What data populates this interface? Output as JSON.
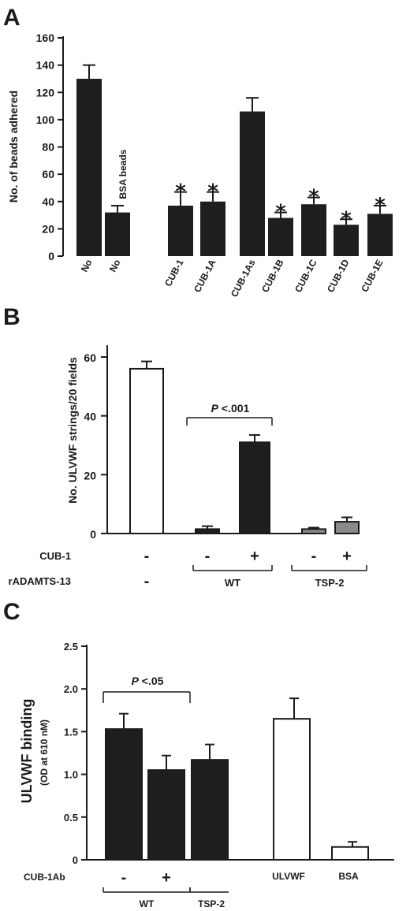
{
  "panels": {
    "a": {
      "label": "A"
    },
    "b": {
      "label": "B"
    },
    "c": {
      "label": "C"
    }
  },
  "chart_data": [
    {
      "type": "bar",
      "panel": "A",
      "ylabel": "No. of beads adhered",
      "ylim": [
        0,
        160
      ],
      "yticks": [
        "0",
        "20",
        "40",
        "60",
        "80",
        "100",
        "120",
        "140",
        "160"
      ],
      "categories": [
        "No",
        "No",
        "CUB-1",
        "CUB-1A",
        "CUB-1As",
        "CUB-1B",
        "CUB-1C",
        "CUB-1D",
        "CUB-1E"
      ],
      "values": [
        130,
        32,
        37,
        40,
        106,
        28,
        38,
        23,
        31
      ],
      "errors": [
        10,
        5,
        10,
        7,
        10,
        4,
        5,
        4,
        6
      ],
      "significance": [
        "",
        "",
        "*",
        "*",
        "",
        "*",
        "*",
        "*",
        "*"
      ],
      "annotation": "BSA  beads",
      "bar_color": "#1e1e1e"
    },
    {
      "type": "bar",
      "panel": "B",
      "ylabel": "No. ULVWF strings/20 fields",
      "ylim": [
        0,
        60
      ],
      "yticks": [
        "0",
        "20",
        "40",
        "60"
      ],
      "values": [
        56,
        1.5,
        31,
        1.5,
        4
      ],
      "errors": [
        2.5,
        1,
        2.5,
        0.5,
        1.5
      ],
      "fills": [
        "#ffffff",
        "#1e1e1e",
        "#1e1e1e",
        "#8a8a8a",
        "#8a8a8a"
      ],
      "row_labels": [
        "CUB-1",
        "rADAMTS-13"
      ],
      "cub1": [
        "-",
        "-",
        "+",
        "-",
        "+"
      ],
      "groups": [
        {
          "name": "-"
        },
        {
          "name": "WT"
        },
        {
          "name": "TSP-2"
        }
      ],
      "pvalue": {
        "italic": "P",
        "text": " <.001"
      }
    },
    {
      "type": "bar",
      "panel": "C",
      "ylabel": "ULVWF  binding",
      "ylabel_sub": "(OD at 610 nM)",
      "ylim": [
        0,
        2.5
      ],
      "yticks": [
        "0",
        "0.5",
        "1.0",
        "1.5",
        "2.0",
        "2.5"
      ],
      "values": [
        1.53,
        1.05,
        1.17,
        1.65,
        0.15
      ],
      "errors": [
        0.18,
        0.17,
        0.18,
        0.24,
        0.06
      ],
      "fills": [
        "#1e1e1e",
        "#1e1e1e",
        "#1e1e1e",
        "#ffffff",
        "#ffffff"
      ],
      "row_label": "CUB-1Ab",
      "row_signs": [
        "-",
        "+"
      ],
      "groups": [
        "WT",
        "TSP-2"
      ],
      "right_labels": [
        "ULVWF",
        "BSA"
      ],
      "pvalue": {
        "italic": "P",
        "text": " <.05"
      }
    }
  ]
}
